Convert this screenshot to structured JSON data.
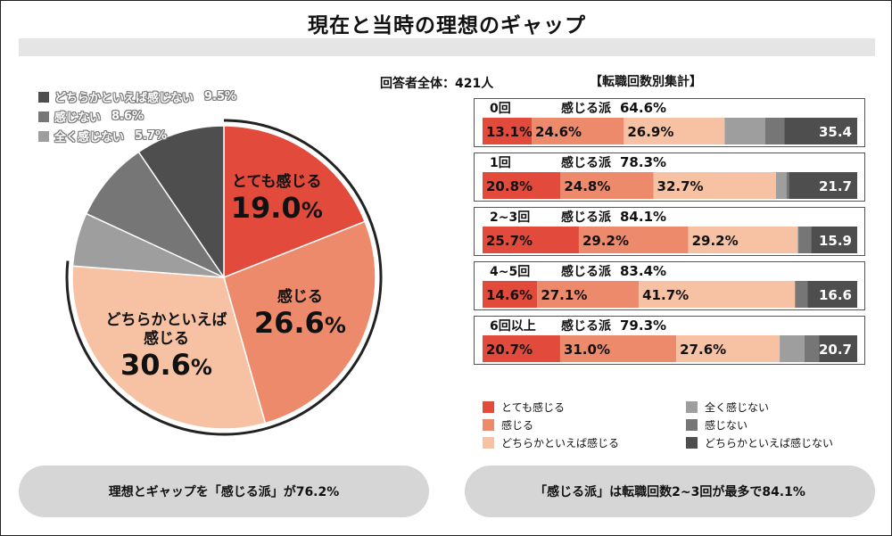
{
  "title": "現在と当時の理想のギャップ",
  "respondents": "回答者全体：421人",
  "subtitle": "【転職回数別集計】",
  "colors": {
    "red": "#e24a3c",
    "salmon": "#ee8a6c",
    "peach": "#f7c2a4",
    "gray_light": "#9e9e9e",
    "gray_mid": "#767676",
    "gray_dark": "#4e4e4e"
  },
  "chart_data": [
    {
      "type": "pie",
      "title": "回答者全体：421人",
      "slices": [
        {
          "name": "とても感じる",
          "value": 19.0,
          "label": "19.0",
          "color": "#e24a3c"
        },
        {
          "name": "感じる",
          "value": 26.6,
          "label": "26.6",
          "color": "#ee8a6c"
        },
        {
          "name": "どちらかといえば感じる",
          "value": 30.6,
          "label": "30.6",
          "color": "#f7c2a4"
        },
        {
          "name": "全く感じない",
          "value": 5.7,
          "label": "5.7%",
          "color": "#9e9e9e"
        },
        {
          "name": "感じない",
          "value": 8.6,
          "label": "8.6%",
          "color": "#767676"
        },
        {
          "name": "どちらかといえば感じない",
          "value": 9.5,
          "label": "9.5%",
          "color": "#4e4e4e"
        }
      ],
      "label_lines": {
        "とても感じる": [
          "とても感じる"
        ],
        "感じる": [
          "感じる"
        ],
        "どちらかといえば感じる": [
          "どちらかといえば",
          "感じる"
        ]
      },
      "unit": "%"
    },
    {
      "type": "bar",
      "orientation": "horizontal",
      "stacked": true,
      "title": "【転職回数別集計】",
      "positive_label": "感じる派",
      "categories": [
        "0回",
        "1回",
        "2~3回",
        "4~5回",
        "6回以上"
      ],
      "positive_totals": [
        "64.6%",
        "78.3%",
        "84.1%",
        "83.4%",
        "79.3%"
      ],
      "series": [
        {
          "name": "とても感じる",
          "values": [
            13.1,
            20.8,
            25.7,
            14.6,
            20.7
          ],
          "shown": [
            "13.1%",
            "20.8%",
            "25.7%",
            "14.6%",
            "20.7%"
          ]
        },
        {
          "name": "感じる",
          "values": [
            24.6,
            24.8,
            29.2,
            27.1,
            31.0
          ],
          "shown": [
            "24.6%",
            "24.8%",
            "29.2%",
            "27.1%",
            "31.0%"
          ]
        },
        {
          "name": "どちらかといえば感じる",
          "values": [
            26.9,
            32.7,
            29.2,
            41.7,
            27.6
          ],
          "shown": [
            "26.9%",
            "32.7%",
            "29.2%",
            "41.7%",
            "27.6%"
          ]
        },
        {
          "name": "全く感じない",
          "values": [
            10.8,
            2.8,
            0.2,
            0.0,
            6.6
          ],
          "shown": [
            "",
            "",
            "",
            "",
            ""
          ]
        },
        {
          "name": "感じない",
          "values": [
            5.2,
            0.7,
            3.4,
            3.3,
            3.9
          ],
          "shown": [
            "",
            "",
            "",
            "",
            ""
          ]
        },
        {
          "name": "どちらかといえば感じない",
          "values": [
            19.4,
            18.2,
            12.3,
            13.3,
            10.2
          ],
          "shown": [
            "",
            "",
            "",
            "",
            ""
          ]
        }
      ],
      "end_labels": [
        "35.4",
        "21.7",
        "15.9",
        "16.6",
        "20.7"
      ],
      "xlim": [
        0,
        100
      ]
    }
  ],
  "bar_legend": [
    {
      "label": "とても感じる",
      "color": "#e24a3c"
    },
    {
      "label": "全く感じない",
      "color": "#9e9e9e"
    },
    {
      "label": "感じる",
      "color": "#ee8a6c"
    },
    {
      "label": "感じない",
      "color": "#767676"
    },
    {
      "label": "どちらかといえば感じる",
      "color": "#f7c2a4"
    },
    {
      "label": "どちらかといえば感じない",
      "color": "#4e4e4e"
    }
  ],
  "callouts": {
    "left": "理想とギャップを「感じる派」が76.2%",
    "right": "「感じる派」は転職回数2~3回が最多で84.1%"
  }
}
